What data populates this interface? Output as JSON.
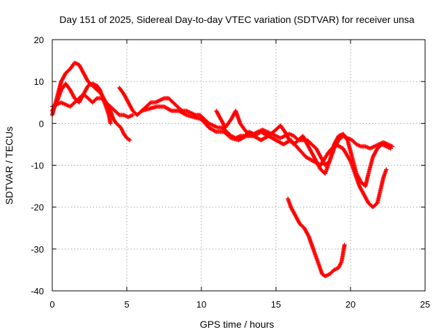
{
  "chart_data": {
    "type": "scatter",
    "title": "Day 151 of 2025, Sidereal Day-to-day VTEC variation (SDTVAR) for receiver unsa",
    "xlabel": "GPS time / hours",
    "ylabel": "SDTVAR / TECUs",
    "xlim": [
      0,
      25
    ],
    "ylim": [
      -40,
      20
    ],
    "xticks": [
      0,
      5,
      10,
      15,
      20,
      25
    ],
    "yticks": [
      -40,
      -30,
      -20,
      -10,
      0,
      10,
      20
    ],
    "grid": true,
    "marker": "+",
    "color": "#ff0000",
    "series": [
      {
        "name": "track-1",
        "points": [
          [
            0.0,
            2
          ],
          [
            0.3,
            6
          ],
          [
            0.6,
            10
          ],
          [
            0.9,
            12
          ],
          [
            1.2,
            13
          ],
          [
            1.5,
            14.5
          ],
          [
            1.8,
            14
          ],
          [
            2.1,
            12
          ],
          [
            2.4,
            10
          ],
          [
            2.7,
            9
          ],
          [
            3.0,
            8
          ],
          [
            3.3,
            7
          ],
          [
            3.6,
            5
          ],
          [
            3.9,
            3
          ],
          [
            4.1,
            1
          ],
          [
            4.3,
            0
          ],
          [
            4.6,
            -1
          ],
          [
            4.8,
            -2.5
          ],
          [
            5.0,
            -3.5
          ],
          [
            5.2,
            -4
          ]
        ]
      },
      {
        "name": "track-2",
        "points": [
          [
            0.0,
            3
          ],
          [
            0.3,
            5
          ],
          [
            0.6,
            8
          ],
          [
            0.9,
            9.5
          ],
          [
            1.2,
            8
          ],
          [
            1.5,
            6
          ],
          [
            1.8,
            5
          ],
          [
            2.1,
            7
          ],
          [
            2.4,
            9
          ],
          [
            2.7,
            9.5
          ],
          [
            3.0,
            9
          ],
          [
            3.2,
            8
          ],
          [
            3.4,
            6
          ],
          [
            3.6,
            4
          ],
          [
            3.8,
            2
          ],
          [
            3.9,
            0
          ]
        ]
      },
      {
        "name": "track-3",
        "points": [
          [
            0.0,
            4
          ],
          [
            0.3,
            4.5
          ],
          [
            0.6,
            5
          ],
          [
            0.9,
            4.5
          ],
          [
            1.2,
            4
          ],
          [
            1.5,
            5
          ],
          [
            1.8,
            6
          ],
          [
            2.1,
            7
          ],
          [
            2.4,
            6
          ],
          [
            2.7,
            5
          ],
          [
            3.0,
            6
          ],
          [
            3.3,
            6
          ],
          [
            3.6,
            5
          ],
          [
            3.9,
            4
          ],
          [
            4.2,
            3
          ],
          [
            4.5,
            2
          ],
          [
            4.8,
            2
          ],
          [
            5.1,
            1.5
          ],
          [
            5.4,
            2
          ]
        ]
      },
      {
        "name": "track-4",
        "points": [
          [
            4.5,
            8.5
          ],
          [
            4.8,
            7
          ],
          [
            5.1,
            5
          ],
          [
            5.4,
            3
          ],
          [
            5.7,
            2
          ],
          [
            6.0,
            3
          ],
          [
            6.3,
            4
          ],
          [
            6.6,
            5
          ],
          [
            6.9,
            5
          ],
          [
            7.2,
            5.5
          ],
          [
            7.5,
            6
          ],
          [
            7.8,
            6
          ],
          [
            8.1,
            5
          ],
          [
            8.4,
            4
          ],
          [
            8.7,
            3
          ],
          [
            9.0,
            3
          ],
          [
            9.3,
            2.5
          ],
          [
            9.6,
            2
          ],
          [
            9.9,
            2
          ],
          [
            10.2,
            1
          ],
          [
            10.5,
            0
          ],
          [
            10.8,
            -0.5
          ],
          [
            11.1,
            -1
          ],
          [
            11.4,
            -1
          ],
          [
            11.7,
            -2
          ],
          [
            12.0,
            -3
          ],
          [
            12.3,
            -3.5
          ],
          [
            12.6,
            -3
          ],
          [
            12.9,
            -3
          ],
          [
            13.2,
            -2
          ],
          [
            13.5,
            -2.5
          ],
          [
            13.8,
            -2
          ],
          [
            14.1,
            -1.5
          ],
          [
            14.4,
            -2
          ],
          [
            14.7,
            -2.5
          ],
          [
            15.0,
            -3
          ],
          [
            15.3,
            -3.5
          ],
          [
            15.6,
            -3
          ],
          [
            15.9,
            -2.5
          ],
          [
            16.2,
            -3
          ],
          [
            16.5,
            -4
          ],
          [
            16.8,
            -4
          ],
          [
            17.1,
            -4
          ],
          [
            17.4,
            -5
          ],
          [
            17.7,
            -6
          ],
          [
            18.0,
            -8
          ],
          [
            18.3,
            -10
          ],
          [
            18.6,
            -9
          ],
          [
            18.9,
            -6
          ],
          [
            19.2,
            -4
          ],
          [
            19.5,
            -3
          ],
          [
            19.8,
            -3.5
          ],
          [
            20.1,
            -4
          ],
          [
            20.4,
            -5
          ],
          [
            20.7,
            -5.5
          ],
          [
            21.0,
            -5.5
          ],
          [
            21.3,
            -6
          ],
          [
            21.6,
            -5.5
          ],
          [
            21.9,
            -5
          ],
          [
            22.2,
            -4.5
          ],
          [
            22.5,
            -5
          ],
          [
            22.8,
            -5.5
          ]
        ]
      },
      {
        "name": "track-5",
        "points": [
          [
            6.0,
            3
          ],
          [
            6.5,
            3.5
          ],
          [
            7.0,
            4
          ],
          [
            7.5,
            4
          ],
          [
            8.0,
            3
          ],
          [
            8.5,
            3
          ],
          [
            9.0,
            2
          ],
          [
            9.5,
            1.5
          ],
          [
            10.0,
            1
          ],
          [
            10.5,
            -1
          ],
          [
            11.0,
            -2
          ],
          [
            11.5,
            -2
          ],
          [
            12.0,
            -3.5
          ],
          [
            12.5,
            -4
          ],
          [
            13.0,
            -3
          ],
          [
            13.5,
            -3
          ],
          [
            14.0,
            -2
          ],
          [
            14.5,
            -3
          ],
          [
            15.0,
            -1.5
          ],
          [
            15.3,
            -0.5
          ],
          [
            15.6,
            -2
          ],
          [
            15.9,
            -4
          ],
          [
            16.2,
            -5
          ],
          [
            16.5,
            -4
          ],
          [
            16.8,
            -3
          ],
          [
            17.1,
            -5
          ],
          [
            17.4,
            -7
          ],
          [
            17.7,
            -9
          ],
          [
            18.0,
            -11
          ],
          [
            18.3,
            -12
          ],
          [
            18.6,
            -9
          ],
          [
            18.9,
            -5
          ],
          [
            19.2,
            -3
          ],
          [
            19.5,
            -2.5
          ],
          [
            19.8,
            -4
          ],
          [
            20.1,
            -8
          ],
          [
            20.4,
            -12
          ],
          [
            20.7,
            -14
          ],
          [
            21.0,
            -15
          ],
          [
            21.2,
            -12
          ],
          [
            21.5,
            -8
          ],
          [
            21.8,
            -6
          ],
          [
            22.1,
            -5
          ],
          [
            22.4,
            -5.5
          ],
          [
            22.7,
            -6
          ]
        ]
      },
      {
        "name": "track-6",
        "points": [
          [
            11.0,
            3
          ],
          [
            11.3,
            1
          ],
          [
            11.6,
            -1
          ],
          [
            12.0,
            1
          ],
          [
            12.3,
            3
          ],
          [
            12.6,
            0
          ],
          [
            13.0,
            -2
          ],
          [
            13.5,
            -3
          ],
          [
            14.0,
            -4
          ],
          [
            14.5,
            -3
          ],
          [
            15.0,
            -4
          ],
          [
            15.5,
            -5
          ],
          [
            16.0,
            -4
          ],
          [
            16.5,
            -6
          ],
          [
            17.0,
            -8
          ],
          [
            17.5,
            -9
          ],
          [
            18.0,
            -10
          ],
          [
            18.5,
            -7
          ],
          [
            19.0,
            -5
          ],
          [
            19.5,
            -6
          ],
          [
            20.0,
            -9
          ],
          [
            20.3,
            -12
          ],
          [
            20.6,
            -15
          ],
          [
            20.9,
            -17
          ],
          [
            21.2,
            -19
          ],
          [
            21.5,
            -20
          ],
          [
            21.8,
            -19
          ],
          [
            22.0,
            -16
          ],
          [
            22.2,
            -13
          ],
          [
            22.4,
            -11
          ]
        ]
      },
      {
        "name": "track-7",
        "points": [
          [
            15.8,
            -18
          ],
          [
            16.0,
            -20
          ],
          [
            16.3,
            -22
          ],
          [
            16.6,
            -24
          ],
          [
            16.9,
            -25
          ],
          [
            17.2,
            -27
          ],
          [
            17.5,
            -30
          ],
          [
            17.7,
            -32
          ],
          [
            17.9,
            -34
          ],
          [
            18.1,
            -36
          ],
          [
            18.3,
            -36.5
          ],
          [
            18.6,
            -36
          ],
          [
            18.9,
            -35
          ],
          [
            19.2,
            -34.5
          ],
          [
            19.4,
            -33
          ],
          [
            19.5,
            -31
          ],
          [
            19.6,
            -29
          ]
        ]
      }
    ]
  }
}
